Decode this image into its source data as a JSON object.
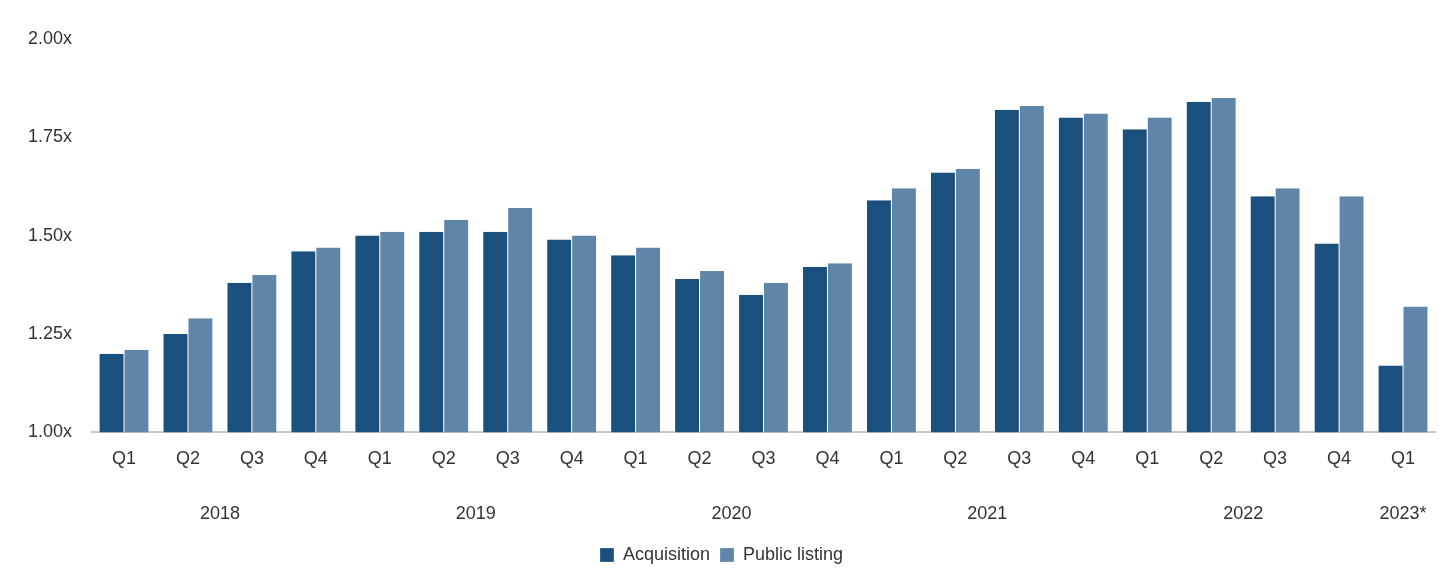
{
  "chart_data": {
    "type": "bar",
    "categories": [
      "Q1",
      "Q2",
      "Q3",
      "Q4",
      "Q1",
      "Q2",
      "Q3",
      "Q4",
      "Q1",
      "Q2",
      "Q3",
      "Q4",
      "Q1",
      "Q2",
      "Q3",
      "Q4",
      "Q1",
      "Q2",
      "Q3",
      "Q4",
      "Q1"
    ],
    "series": [
      {
        "name": "Acquisition",
        "color": "#1b4f7e",
        "values": [
          1.2,
          1.25,
          1.38,
          1.46,
          1.5,
          1.51,
          1.51,
          1.49,
          1.45,
          1.39,
          1.35,
          1.42,
          1.59,
          1.66,
          1.82,
          1.8,
          1.77,
          1.84,
          1.6,
          1.48,
          1.17
        ]
      },
      {
        "name": "Public listing",
        "color": "#5f86a8",
        "values": [
          1.21,
          1.29,
          1.4,
          1.47,
          1.51,
          1.54,
          1.57,
          1.5,
          1.47,
          1.41,
          1.38,
          1.43,
          1.62,
          1.67,
          1.83,
          1.81,
          1.8,
          1.85,
          1.62,
          1.6,
          1.32
        ]
      }
    ],
    "annotations": [
      "2018",
      "2019",
      "2020",
      "2021",
      "2022",
      "2023*"
    ],
    "ylim": [
      1,
      2
    ],
    "yticks": [
      {
        "value": 1,
        "label": "1.00x"
      },
      {
        "value": 1.25,
        "label": "1.25x"
      },
      {
        "value": 1.5,
        "label": "1.50x"
      },
      {
        "value": 1.75,
        "label": "1.75x"
      },
      {
        "value": 2,
        "label": "2.00x"
      }
    ],
    "grid": false,
    "legend": "bottom"
  }
}
